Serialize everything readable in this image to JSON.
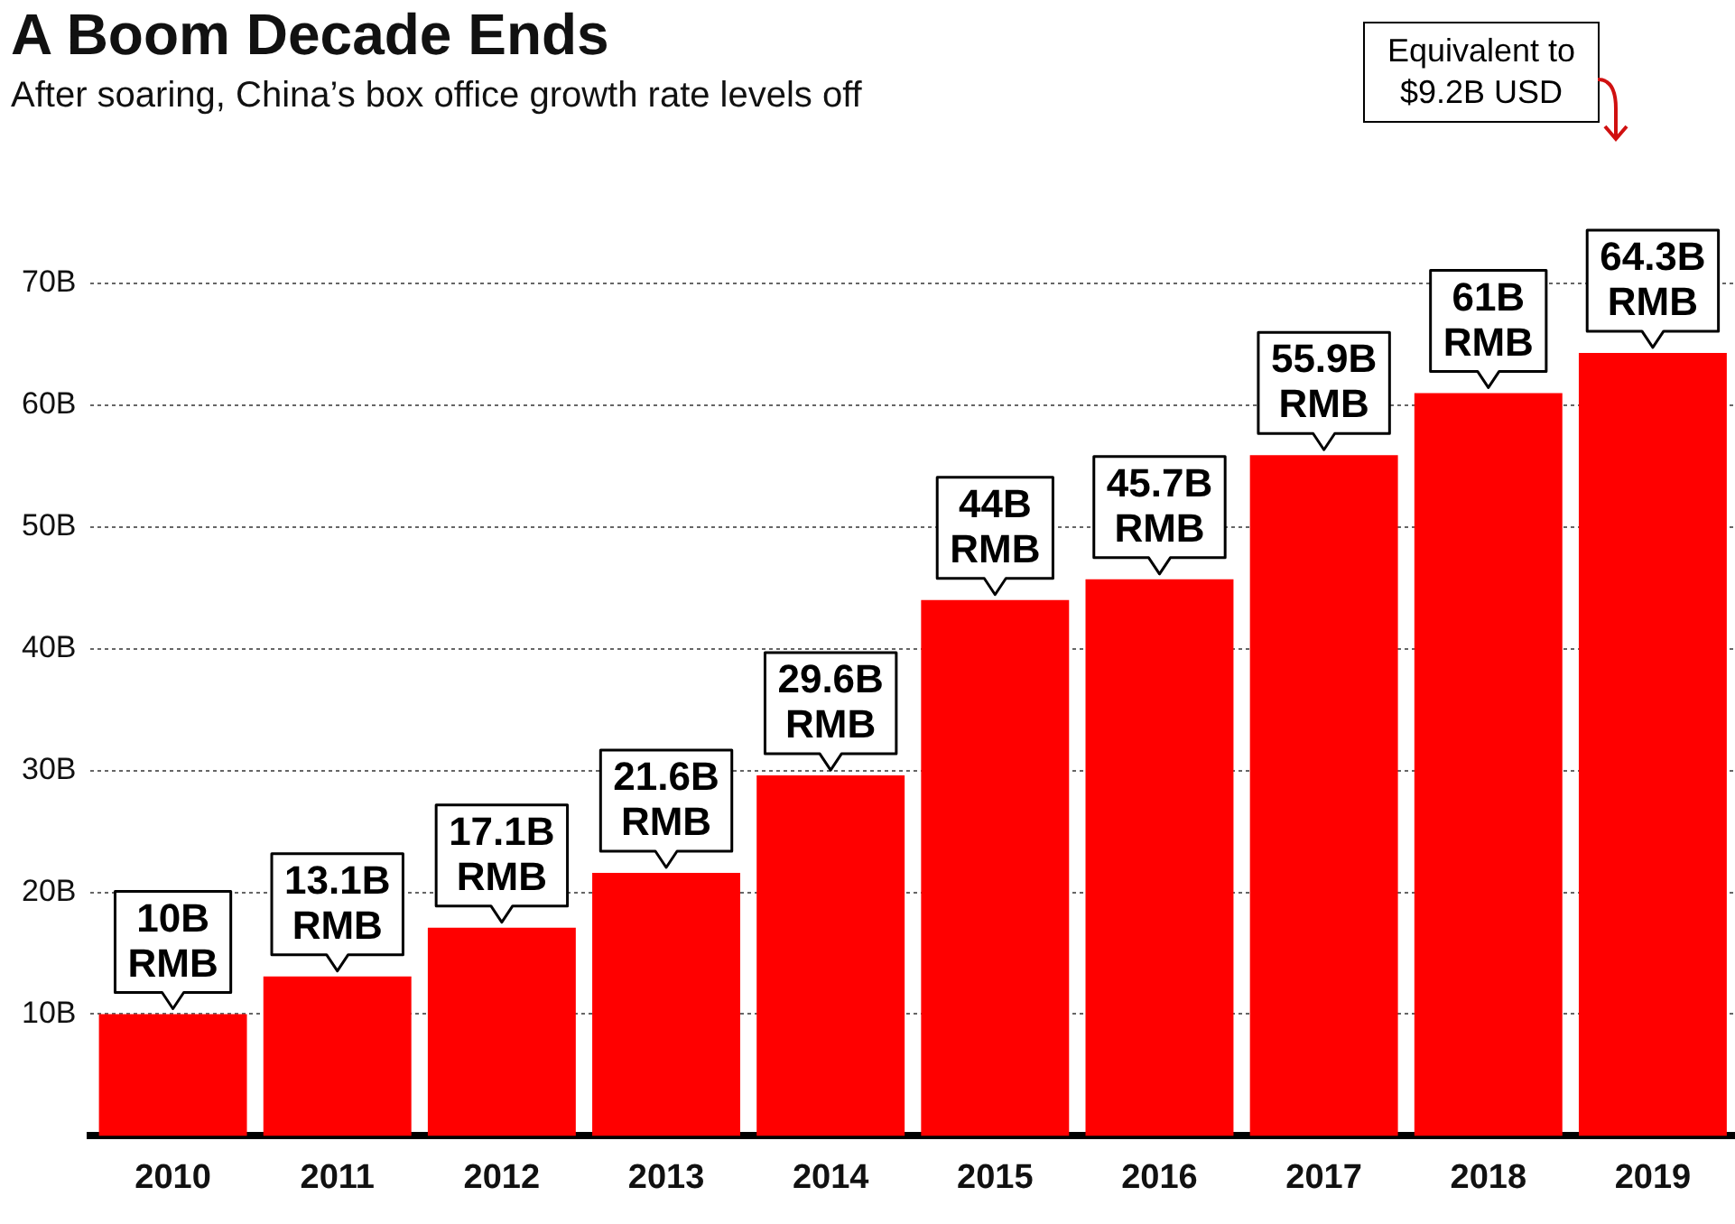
{
  "chart_data": {
    "type": "bar",
    "title": "A Boom Decade Ends",
    "subtitle": "After soaring, China’s box office growth rate levels off",
    "categories": [
      "2010",
      "2011",
      "2012",
      "2013",
      "2014",
      "2015",
      "2016",
      "2017",
      "2018",
      "2019"
    ],
    "values": [
      10,
      13.1,
      17.1,
      21.6,
      29.6,
      44,
      45.7,
      55.9,
      61,
      64.3
    ],
    "value_labels": [
      "10B RMB",
      "13.1B RMB",
      "17.1B RMB",
      "21.6B RMB",
      "29.6B RMB",
      "44B RMB",
      "45.7B RMB",
      "55.9B RMB",
      "61B RMB",
      "64.3B RMB"
    ],
    "color": "#ff0000",
    "ylim": [
      0,
      70
    ],
    "yticks": [
      {
        "value": 10,
        "label": "10B"
      },
      {
        "value": 20,
        "label": "20B"
      },
      {
        "value": 30,
        "label": "30B"
      },
      {
        "value": 40,
        "label": "40B"
      },
      {
        "value": 50,
        "label": "50B"
      },
      {
        "value": 60,
        "label": "60B"
      },
      {
        "value": 70,
        "label": "70B"
      }
    ],
    "grid": "y",
    "annotations": [
      "Equivalent to $9.2B USD"
    ]
  }
}
